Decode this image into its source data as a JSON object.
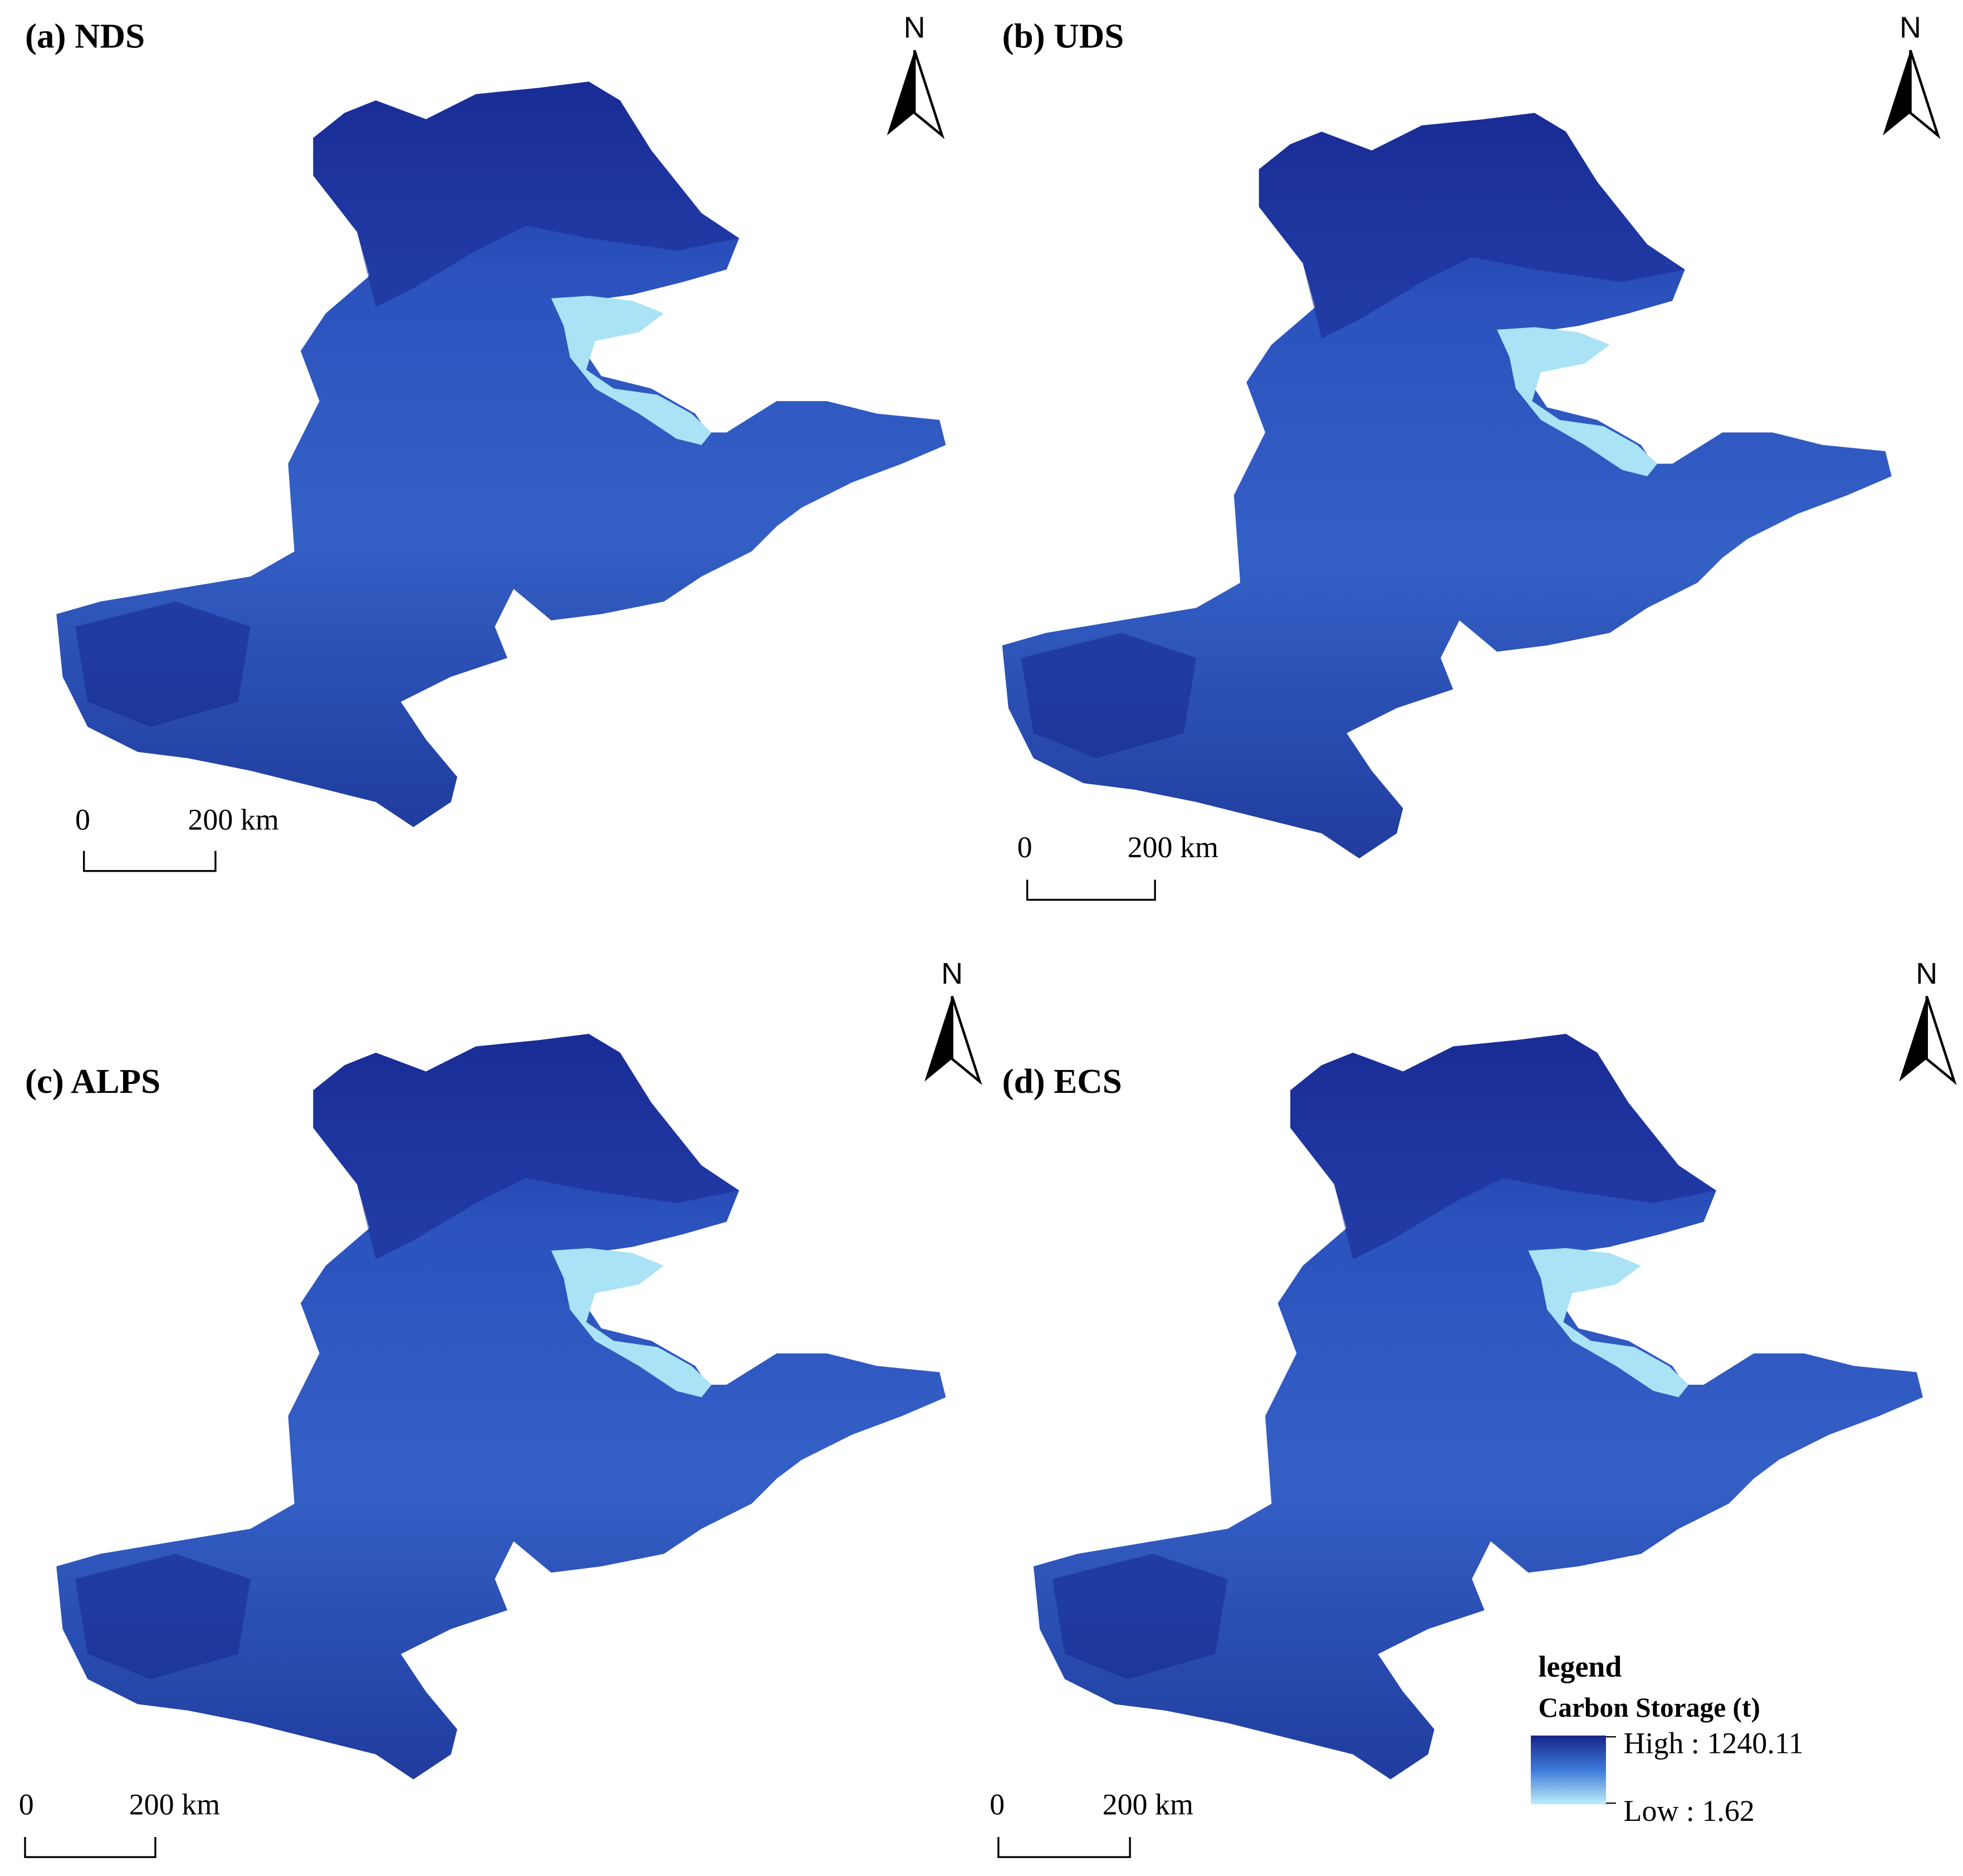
{
  "panels": [
    {
      "label": "(a) NDS",
      "north": "N",
      "scale_start": "0",
      "scale_end": "200 km"
    },
    {
      "label": "(b) UDS",
      "north": "N",
      "scale_start": "0",
      "scale_end": "200 km"
    },
    {
      "label": "(c) ALPS",
      "north": "N",
      "scale_start": "0",
      "scale_end": "200 km"
    },
    {
      "label": "(d) ECS",
      "north": "N",
      "scale_start": "0",
      "scale_end": "200 km"
    }
  ],
  "legend": {
    "title": "legend",
    "subtitle": "Carbon Storage (t)",
    "high": "High : 1240.11",
    "low": "Low : 1.62"
  }
}
